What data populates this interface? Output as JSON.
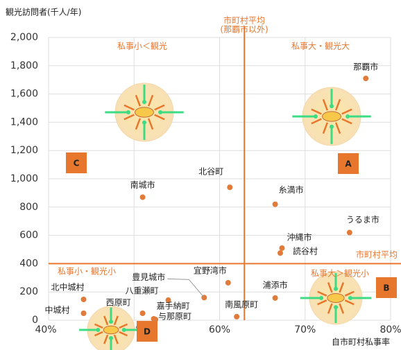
{
  "chart_data": {
    "type": "scatter",
    "y_axis_title": "観光訪問者(千人/年)",
    "x_axis_title": "自市町村私事率",
    "color": "#e07b39",
    "grid": true,
    "xlim": [
      40,
      80
    ],
    "ylim": [
      0,
      2000
    ],
    "xticks": [
      {
        "value": 40,
        "label": "40%"
      },
      {
        "value": 50,
        "label": "50%"
      },
      {
        "value": 60,
        "label": "60%"
      },
      {
        "value": 70,
        "label": "70%"
      },
      {
        "value": 80,
        "label": "80%"
      }
    ],
    "yticks": [
      0,
      {
        "value": 200,
        "label": "200"
      },
      400,
      600,
      800,
      {
        "value": 1000,
        "label": "1,000"
      },
      {
        "value": 1200,
        "label": "1,200"
      },
      {
        "value": 1400,
        "label": "1,400"
      },
      {
        "value": 1600,
        "label": "1,600"
      },
      {
        "value": 1800,
        "label": "1,800"
      },
      {
        "value": 2000,
        "label": "2,000"
      }
    ],
    "point_labels": [
      "那覇市",
      "北谷町",
      "南城市",
      "糸満市",
      "うるま市",
      "沖縄市",
      "読谷村",
      "宜野湾市",
      "浦添市",
      "豊見城市",
      "八重瀬町",
      "北中城村",
      "中城村",
      "西原町",
      "嘉手納町",
      "与那原町",
      "南風原町"
    ],
    "x": [
      77.1,
      61.2,
      51.0,
      66.5,
      75.2,
      67.3,
      67.1,
      61.0,
      66.5,
      58.2,
      54.0,
      44.1,
      44.1,
      51.0,
      52.3,
      52.5,
      62.0
    ],
    "values": [
      1710,
      940,
      870,
      820,
      620,
      510,
      475,
      265,
      157,
      160,
      142,
      147,
      49,
      49,
      10,
      5,
      25
    ],
    "reference_lines": [
      {
        "axis": "x",
        "value": 62.9,
        "label": [
          "市町村平均",
          "(那覇市以外)"
        ]
      },
      {
        "axis": "y",
        "value": 400,
        "label": [
          "市町村平均"
        ]
      }
    ],
    "quadrants": [
      {
        "label": "私事小＜観光",
        "letter": "C"
      },
      {
        "label": "私事大・観光大",
        "letter": "A"
      },
      {
        "label": "私事小・観光小",
        "letter": "D"
      },
      {
        "label": "私事大＞観光小",
        "letter": "B"
      }
    ]
  }
}
